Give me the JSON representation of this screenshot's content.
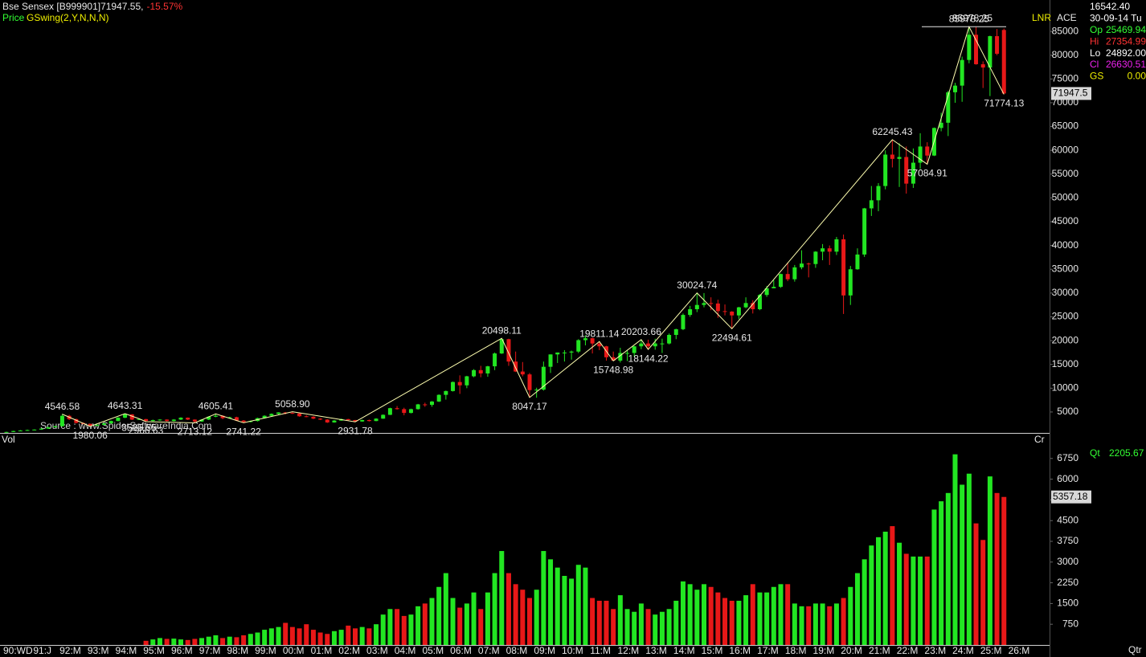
{
  "chart_data": {
    "type": "candlestick",
    "title": "Bse Sensex [B999901]71947.55,",
    "change": "-15.57%",
    "price_label": "Price",
    "indicator": "GSwing(2,Y,N,N,N)",
    "source": "Source : www.SpiderSoftwareIndia.Com",
    "volume_label": "Vol",
    "volume_unit": "Cr",
    "period_label": "Qtr",
    "lnr_label": "LNR",
    "ace_label": "ACE",
    "qt_label": "Qt",
    "qt_value": "2205.67",
    "info_panel": [
      {
        "label": "",
        "value": "16542.40",
        "color": "#ffffff"
      },
      {
        "label": "",
        "value": "30-09-14 Tu",
        "color": "#ffffff"
      },
      {
        "label": "Op",
        "value": "25469.94",
        "color": "#33ff33"
      },
      {
        "label": "Hi",
        "value": "27354.99",
        "color": "#ff3333"
      },
      {
        "label": "Lo",
        "value": "24892.00",
        "color": "#ffffff"
      },
      {
        "label": "Cl",
        "value": "26630.51",
        "color": "#ee22ee"
      },
      {
        "label": "GS",
        "value": "0.00",
        "color": "#eeee00"
      }
    ],
    "up_color": "#22e622",
    "down_color": "#e81818",
    "swing_color": "#ffffb0",
    "ylim": [
      600,
      91600
    ],
    "yticks": [
      5000,
      10000,
      15000,
      20000,
      25000,
      30000,
      35000,
      40000,
      45000,
      50000,
      55000,
      60000,
      65000,
      70000,
      75000,
      80000,
      85000
    ],
    "volume_ylim": [
      0,
      7500
    ],
    "volume_yticks": [
      750,
      1500,
      2250,
      3000,
      3750,
      4500,
      5250,
      6000,
      6750
    ],
    "price_marker": {
      "value": 71947.55,
      "label": "71947.5"
    },
    "volume_marker": 5357.18,
    "peak_line": {
      "value": 85978.25,
      "label": "85978.25"
    },
    "x_labels": [
      "90:WD",
      "91:J",
      "92:M",
      "93:M",
      "94:M",
      "95:M",
      "96:M",
      "97:M",
      "98:M",
      "99:M",
      "00:M",
      "01:M",
      "02:M",
      "03:M",
      "04:M",
      "05:M",
      "06:M",
      "07:M",
      "08:M",
      "09:M",
      "10:M",
      "11:M",
      "12:M",
      "13:M",
      "14:M",
      "15:M",
      "16:M",
      "17:M",
      "18:M",
      "19:M",
      "20:M",
      "21:M",
      "22:M",
      "23:M",
      "24:M",
      "25:M",
      "26:M"
    ],
    "swings": [
      {
        "value": 4546.58,
        "label": "4546.58"
      },
      {
        "value": 1980.06,
        "label": "1980.06"
      },
      {
        "value": 4643.31,
        "label": "4643.31"
      },
      {
        "value": 3595.55,
        "label": "3595.55"
      },
      {
        "value": 2966.63,
        "label": "2966.63"
      },
      {
        "value": 2713.12,
        "label": "2713.12"
      },
      {
        "value": 4605.41,
        "label": "4605.41"
      },
      {
        "value": 2741.22,
        "label": "2741.22"
      },
      {
        "value": 5058.9,
        "label": "5058.90"
      },
      {
        "value": 2931.78,
        "label": "2931.78"
      },
      {
        "value": 20498.11,
        "label": "20498.11"
      },
      {
        "value": 8047.17,
        "label": "8047.17"
      },
      {
        "value": 19811.14,
        "label": "19811.14"
      },
      {
        "value": 15748.98,
        "label": "15748.98"
      },
      {
        "value": 20203.66,
        "label": "20203.66"
      },
      {
        "value": 18144.22,
        "label": "18144.22"
      },
      {
        "value": 30024.74,
        "label": "30024.74"
      },
      {
        "value": 22494.61,
        "label": "22494.61"
      },
      {
        "value": 62245.43,
        "label": "62245.43"
      },
      {
        "value": 57084.91,
        "label": "57084.91"
      },
      {
        "value": 85978.25,
        "label": "85978.25"
      },
      {
        "value": 71774.13,
        "label": "71774.13"
      }
    ],
    "candles": [
      [
        700,
        850,
        650,
        800
      ],
      [
        800,
        1050,
        780,
        1000
      ],
      [
        1000,
        1200,
        950,
        1100
      ],
      [
        1100,
        1300,
        1050,
        1200
      ],
      [
        1200,
        1350,
        1150,
        1300
      ],
      [
        1300,
        1550,
        1250,
        1500
      ],
      [
        1500,
        1850,
        1450,
        1800
      ],
      [
        1800,
        2100,
        1750,
        2000
      ],
      [
        2000,
        4546.58,
        1950,
        4200
      ],
      [
        4200,
        4400,
        3300,
        3500
      ],
      [
        3500,
        3600,
        2600,
        2700
      ],
      [
        2700,
        2800,
        2400,
        2500
      ],
      [
        2500,
        2550,
        1980.06,
        2100
      ],
      [
        2100,
        2400,
        2050,
        2300
      ],
      [
        2300,
        2700,
        2250,
        2600
      ],
      [
        2600,
        3200,
        2550,
        3100
      ],
      [
        3100,
        3900,
        3050,
        3800
      ],
      [
        3800,
        4643.31,
        3700,
        4500
      ],
      [
        4500,
        4550,
        3300,
        3400
      ],
      [
        3400,
        3595.55,
        3300,
        3500
      ],
      [
        3500,
        3550,
        2966.63,
        3100
      ],
      [
        3100,
        3400,
        3000,
        3300
      ],
      [
        3300,
        3500,
        3150,
        3400
      ],
      [
        3400,
        3450,
        3000,
        3100
      ],
      [
        3100,
        3500,
        3000,
        3400
      ],
      [
        3400,
        3900,
        3300,
        3800
      ],
      [
        3800,
        3850,
        3300,
        3400
      ],
      [
        3400,
        3450,
        2713.12,
        3000
      ],
      [
        3000,
        3500,
        2900,
        3400
      ],
      [
        3400,
        4100,
        3300,
        4000
      ],
      [
        4000,
        4605.41,
        3900,
        4200
      ],
      [
        4200,
        4300,
        3500,
        3700
      ],
      [
        3700,
        4000,
        3600,
        3900
      ],
      [
        3900,
        4000,
        3100,
        3200
      ],
      [
        3200,
        3300,
        2741.22,
        2900
      ],
      [
        2900,
        3200,
        2800,
        3100
      ],
      [
        3100,
        3800,
        3000,
        3700
      ],
      [
        3700,
        4300,
        3600,
        4200
      ],
      [
        4200,
        4700,
        4100,
        4600
      ],
      [
        4600,
        4950,
        4500,
        4900
      ],
      [
        4900,
        5000,
        4500,
        4800
      ],
      [
        4800,
        5058.9,
        4600,
        4700
      ],
      [
        4700,
        4750,
        4000,
        4100
      ],
      [
        4100,
        4300,
        3900,
        4000
      ],
      [
        4000,
        4100,
        3500,
        3600
      ],
      [
        3600,
        3700,
        3300,
        3400
      ],
      [
        3400,
        3500,
        2700,
        2800
      ],
      [
        2800,
        3300,
        2750,
        3200
      ],
      [
        3200,
        3600,
        3150,
        3500
      ],
      [
        3500,
        3550,
        3200,
        3300
      ],
      [
        3300,
        3350,
        2931.78,
        3000
      ],
      [
        3000,
        3400,
        2950,
        3300
      ],
      [
        3300,
        3400,
        3000,
        3100
      ],
      [
        3100,
        3700,
        3050,
        3600
      ],
      [
        3600,
        4500,
        3550,
        4400
      ],
      [
        4400,
        5900,
        4350,
        5800
      ],
      [
        5800,
        6250,
        5500,
        5600
      ],
      [
        5600,
        5900,
        4300,
        4800
      ],
      [
        4800,
        5700,
        4700,
        5600
      ],
      [
        5600,
        6700,
        5500,
        6600
      ],
      [
        6600,
        6950,
        6100,
        6500
      ],
      [
        6500,
        7300,
        6100,
        7200
      ],
      [
        7200,
        8700,
        7100,
        8600
      ],
      [
        8600,
        9500,
        7600,
        9400
      ],
      [
        9400,
        11400,
        9300,
        11300
      ],
      [
        11300,
        12700,
        8800,
        10600
      ],
      [
        10600,
        12600,
        10000,
        12500
      ],
      [
        12500,
        14000,
        12300,
        13800
      ],
      [
        13800,
        14700,
        12300,
        13100
      ],
      [
        13100,
        14700,
        12400,
        14600
      ],
      [
        14600,
        17500,
        13800,
        17300
      ],
      [
        17300,
        20498.11,
        17200,
        20300
      ],
      [
        20300,
        20400,
        14700,
        15600
      ],
      [
        15600,
        17700,
        13400,
        13500
      ],
      [
        13500,
        15500,
        12500,
        12900
      ],
      [
        12900,
        13200,
        8047.17,
        9600
      ],
      [
        9600,
        10100,
        8000,
        9700
      ],
      [
        9700,
        15600,
        9500,
        14500
      ],
      [
        14500,
        17100,
        13200,
        17100
      ],
      [
        17100,
        17500,
        15300,
        17500
      ],
      [
        17500,
        18000,
        15600,
        17500
      ],
      [
        17500,
        17900,
        16000,
        17700
      ],
      [
        17700,
        20300,
        17400,
        20100
      ],
      [
        20100,
        21100,
        19000,
        20500
      ],
      [
        20500,
        20600,
        17300,
        19400
      ],
      [
        19400,
        19811.14,
        18000,
        18800
      ],
      [
        18800,
        18900,
        15800,
        16500
      ],
      [
        16500,
        17700,
        15748.98,
        15800
      ],
      [
        15800,
        18500,
        15400,
        17400
      ],
      [
        17400,
        18000,
        15700,
        17400
      ],
      [
        17400,
        18900,
        16600,
        18800
      ],
      [
        18800,
        20203.66,
        18200,
        19400
      ],
      [
        19400,
        20200,
        18144.22,
        18800
      ],
      [
        18800,
        20400,
        18100,
        19400
      ],
      [
        19400,
        20400,
        17400,
        19400
      ],
      [
        19400,
        21500,
        19200,
        21200
      ],
      [
        21200,
        22500,
        20300,
        22400
      ],
      [
        22400,
        25700,
        22200,
        25400
      ],
      [
        25400,
        27300,
        25000,
        26600
      ],
      [
        26600,
        30024.74,
        26000,
        27500
      ],
      [
        27500,
        30000,
        27000,
        27900
      ],
      [
        27900,
        29100,
        26400,
        27800
      ],
      [
        27800,
        28600,
        24800,
        26200
      ],
      [
        26200,
        27600,
        25300,
        26100
      ],
      [
        26100,
        26200,
        22494.61,
        25300
      ],
      [
        25300,
        27100,
        24500,
        27000
      ],
      [
        27000,
        29100,
        26800,
        27900
      ],
      [
        27900,
        28500,
        25700,
        26600
      ],
      [
        26600,
        29800,
        26400,
        29600
      ],
      [
        29600,
        31500,
        29200,
        31000
      ],
      [
        31000,
        32700,
        31000,
        31300
      ],
      [
        31300,
        34100,
        31100,
        34000
      ],
      [
        34000,
        36400,
        32500,
        32900
      ],
      [
        32900,
        35900,
        32400,
        35400
      ],
      [
        35400,
        38990,
        35000,
        36200
      ],
      [
        36200,
        36400,
        33300,
        36100
      ],
      [
        36100,
        38800,
        35300,
        38700
      ],
      [
        38700,
        40300,
        36900,
        39400
      ],
      [
        39400,
        40000,
        35900,
        38700
      ],
      [
        38700,
        41800,
        38000,
        41300
      ],
      [
        41300,
        42300,
        25600,
        29500
      ],
      [
        29500,
        35700,
        27500,
        35000
      ],
      [
        35000,
        39400,
        34900,
        38100
      ],
      [
        38100,
        47900,
        37600,
        47800
      ],
      [
        47800,
        52500,
        46200,
        49500
      ],
      [
        49500,
        53100,
        47200,
        52500
      ],
      [
        52500,
        60000,
        51800,
        59100
      ],
      [
        59100,
        62245.43,
        56400,
        58200
      ],
      [
        58200,
        61500,
        52300,
        58600
      ],
      [
        58600,
        60800,
        50900,
        53000
      ],
      [
        53000,
        60400,
        52100,
        57400
      ],
      [
        57400,
        63600,
        56100,
        60800
      ],
      [
        60800,
        61700,
        57084.91,
        58900
      ],
      [
        58900,
        64800,
        58800,
        64700
      ],
      [
        64700,
        67900,
        64000,
        65800
      ],
      [
        65800,
        72500,
        63000,
        72200
      ],
      [
        72200,
        74200,
        70000,
        73600
      ],
      [
        73600,
        79700,
        70200,
        79000
      ],
      [
        79000,
        85978.25,
        78300,
        84300
      ],
      [
        84300,
        85900,
        78000,
        78100
      ],
      [
        78100,
        78700,
        73100,
        77400
      ],
      [
        77400,
        84100,
        71400,
        84000
      ],
      [
        84000,
        85500,
        80000,
        80300
      ],
      [
        85300,
        85600,
        71774.13,
        71947.55
      ]
    ],
    "volume": [
      null,
      null,
      null,
      null,
      null,
      null,
      null,
      null,
      null,
      null,
      null,
      null,
      null,
      null,
      null,
      null,
      null,
      null,
      null,
      null,
      150,
      200,
      250,
      220,
      230,
      200,
      180,
      220,
      250,
      300,
      350,
      250,
      300,
      280,
      350,
      400,
      450,
      550,
      600,
      650,
      800,
      650,
      600,
      750,
      550,
      450,
      400,
      500,
      550,
      700,
      600,
      650,
      600,
      750,
      1100,
      1300,
      1300,
      1050,
      1100,
      1400,
      1500,
      1700,
      2100,
      2600,
      1700,
      1350,
      1500,
      1900,
      1300,
      1900,
      2600,
      3400,
      2600,
      2200,
      2000,
      1700,
      2000,
      3400,
      3100,
      2800,
      2500,
      2400,
      2900,
      2800,
      1700,
      1600,
      1600,
      1300,
      1800,
      1300,
      1200,
      1500,
      1300,
      1100,
      1200,
      1300,
      1600,
      2300,
      2200,
      2000,
      2200,
      2100,
      1900,
      1700,
      1600,
      1600,
      1800,
      2200,
      1900,
      1900,
      2100,
      2200,
      2200,
      1500,
      1400,
      1400,
      1500,
      1500,
      1400,
      1500,
      1700,
      2100,
      2600,
      3100,
      3600,
      3900,
      4100,
      4300,
      3700,
      3300,
      3200,
      3200,
      3200,
      4900,
      5200,
      5500,
      6900,
      5800,
      6200,
      4400,
      3800,
      6100,
      5500,
      5357.18
    ]
  }
}
